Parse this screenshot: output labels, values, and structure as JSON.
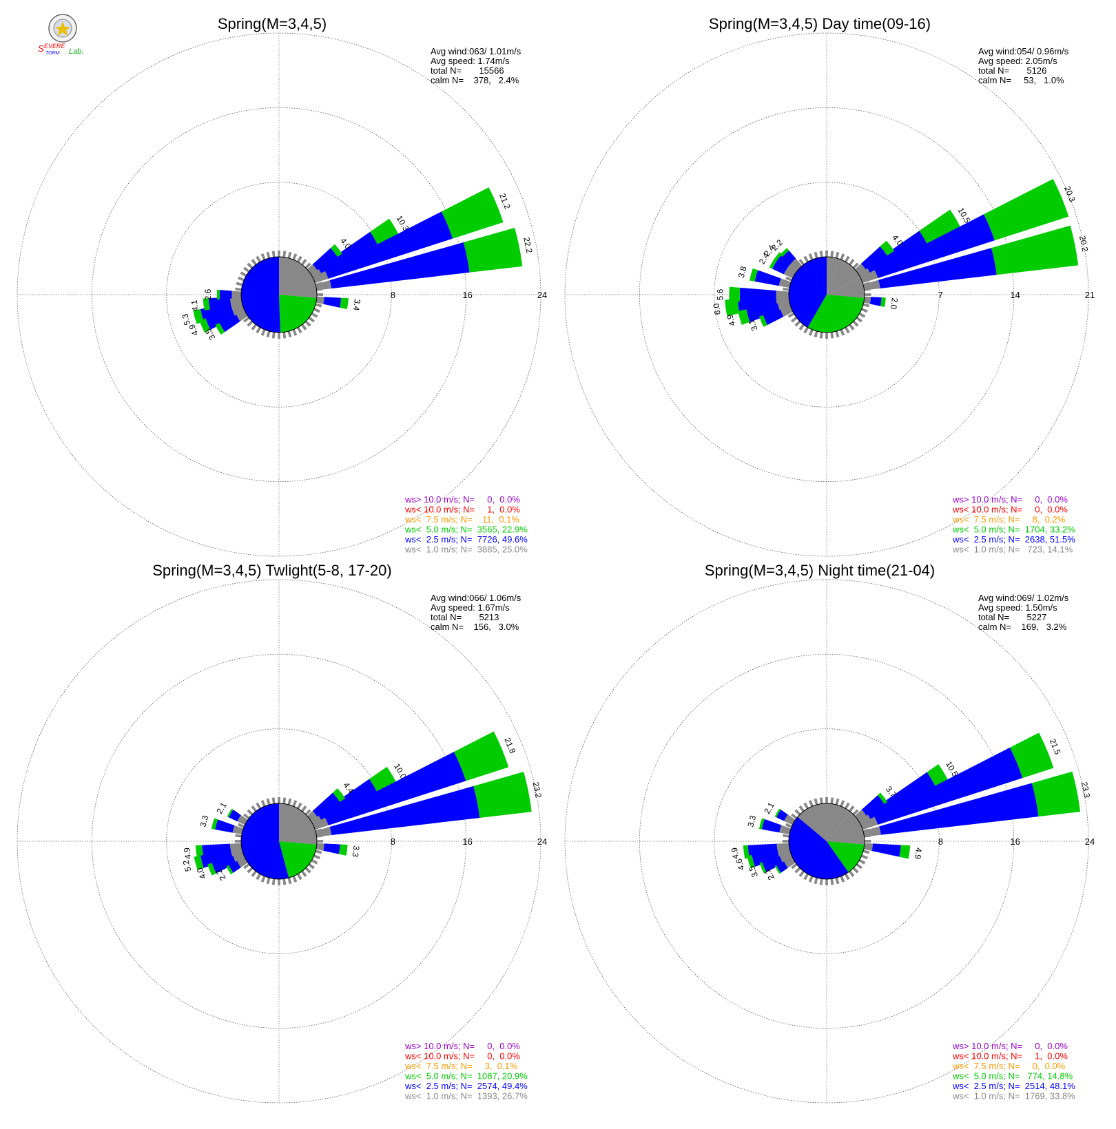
{
  "logo": {
    "text_top": "Severe",
    "text_bottom": "Storm",
    "text_lab": "Lab."
  },
  "colors": {
    "gt10": "#9a00cc",
    "lt10": "#ff0000",
    "lt7_5": "#ff9900",
    "lt5": "#00cc00",
    "lt2_5": "#0000ff",
    "lt1": "#888888"
  },
  "chart_data": [
    {
      "type": "windrose",
      "title": "Spring(M=3,4,5)",
      "stats": [
        "Avg wind:063/ 1.01m/s",
        "Avg speed: 1.74m/s",
        "total N=       15566",
        "calm N=    378,   2.4%"
      ],
      "rmax": 24,
      "ticks": [
        "8",
        "16",
        "24"
      ],
      "legend": [
        "ws> 10.0 m/s; N=     0,  0.0%",
        "ws< 10.0 m/s; N=     1,  0.0%",
        "ws<  7.5 m/s; N=    11,  0.1%",
        "ws<  5.0 m/s; N=  3565, 22.9%",
        "ws<  2.5 m/s; N=  7726, 49.6%",
        "ws<  1.0 m/s; N=  3885, 25.0%"
      ],
      "bars": [
        {
          "dir": 60,
          "value": 10.3,
          "label": "10.3",
          "lt1": 1.0,
          "lt2_5": 6.8,
          "lt5": 2.5
        },
        {
          "dir": 67.5,
          "value": 21.2,
          "label": "21.2",
          "lt1": 1.5,
          "lt2_5": 14.0,
          "lt5": 5.7
        },
        {
          "dir": 78.75,
          "value": 22.2,
          "label": "22.2",
          "lt1": 1.6,
          "lt2_5": 14.9,
          "lt5": 5.7
        },
        {
          "dir": 52.5,
          "value": 4.0,
          "label": "4.0",
          "lt1": 0.8,
          "lt2_5": 2.6,
          "lt5": 0.6
        },
        {
          "dir": 97.5,
          "value": 3.4,
          "label": "3.4",
          "lt1": 0.8,
          "lt2_5": 1.8,
          "lt5": 0.8
        },
        {
          "dir": 255,
          "value": 5.3,
          "label": "5.3",
          "lt1": 1.2,
          "lt2_5": 3.3,
          "lt5": 0.8
        },
        {
          "dir": 262.5,
          "value": 4.1,
          "label": "4.1",
          "lt1": 1.2,
          "lt2_5": 2.3,
          "lt5": 0.6
        },
        {
          "dir": 247.5,
          "value": 4.9,
          "label": "4.9",
          "lt1": 1.2,
          "lt2_5": 3.0,
          "lt5": 0.7
        },
        {
          "dir": 240,
          "value": 3.5,
          "label": "3.5",
          "lt1": 1.0,
          "lt2_5": 2.0,
          "lt5": 0.5
        },
        {
          "dir": 270,
          "value": 2.6,
          "label": "2.6",
          "lt1": 1.0,
          "lt2_5": 1.3,
          "lt5": 0.3
        }
      ],
      "pie": [
        {
          "start": 0,
          "end": 95,
          "cls": "lt1"
        },
        {
          "start": 95,
          "end": 178,
          "cls": "lt5"
        },
        {
          "start": 178,
          "end": 360,
          "cls": "lt2_5"
        }
      ]
    },
    {
      "type": "windrose",
      "title": "Spring(M=3,4,5) Day time(09-16)",
      "stats": [
        "Avg wind:054/ 0.96m/s",
        "Avg speed: 2.05m/s",
        "total N=       5126",
        "calm N=     53,   1.0%"
      ],
      "rmax": 21,
      "ticks": [
        "7",
        "14",
        "21"
      ],
      "legend": [
        "ws> 10.0 m/s; N=     0,  0.0%",
        "ws< 10.0 m/s; N=     0,  0.0%",
        "ws<  7.5 m/s; N=     8,  0.2%",
        "ws<  5.0 m/s; N=  1704, 33.2%",
        "ws<  2.5 m/s; N=  2638, 51.5%",
        "ws<  1.0 m/s; N=   723, 14.1%"
      ],
      "bars": [
        {
          "dir": 60,
          "value": 10.5,
          "label": "10.5",
          "lt1": 1.0,
          "lt2_5": 6.0,
          "lt5": 3.5
        },
        {
          "dir": 67.5,
          "value": 20.3,
          "label": "20.3",
          "lt1": 1.5,
          "lt2_5": 11.5,
          "lt5": 7.3
        },
        {
          "dir": 78.75,
          "value": 20.2,
          "label": "20.2",
          "lt1": 1.5,
          "lt2_5": 11.0,
          "lt5": 7.7
        },
        {
          "dir": 52.5,
          "value": 4.0,
          "label": "4.0",
          "lt1": 0.8,
          "lt2_5": 2.4,
          "lt5": 0.8
        },
        {
          "dir": 97.5,
          "value": 2.0,
          "label": "2.0",
          "lt1": 0.6,
          "lt2_5": 1.0,
          "lt5": 0.4
        },
        {
          "dir": 262.5,
          "value": 6.0,
          "label": "6.0",
          "lt1": 1.2,
          "lt2_5": 3.6,
          "lt5": 1.2
        },
        {
          "dir": 270,
          "value": 5.6,
          "label": "5.6",
          "lt1": 1.2,
          "lt2_5": 3.4,
          "lt5": 1.0
        },
        {
          "dir": 255,
          "value": 4.9,
          "label": "4.9",
          "lt1": 1.1,
          "lt2_5": 3.0,
          "lt5": 0.8
        },
        {
          "dir": 247.5,
          "value": 3.1,
          "label": "3.1",
          "lt1": 1.0,
          "lt2_5": 1.7,
          "lt5": 0.4
        },
        {
          "dir": 285,
          "value": 3.8,
          "label": "3.8",
          "lt1": 1.0,
          "lt2_5": 2.3,
          "lt5": 0.5
        },
        {
          "dir": 300,
          "value": 2.4,
          "label": "2.4",
          "lt1": 0.9,
          "lt2_5": 1.2,
          "lt5": 0.3
        },
        {
          "dir": 307.5,
          "value": 2.4,
          "label": "2.4",
          "lt1": 0.9,
          "lt2_5": 1.2,
          "lt5": 0.3
        },
        {
          "dir": 315,
          "value": 2.2,
          "label": "2.2",
          "lt1": 0.9,
          "lt2_5": 1.0,
          "lt5": 0.3
        }
      ],
      "pie": [
        {
          "start": 0,
          "end": 20,
          "cls": "lt1"
        },
        {
          "start": 20,
          "end": 62,
          "cls": "lt1"
        },
        {
          "start": 62,
          "end": 95,
          "cls": "lt1"
        },
        {
          "start": 95,
          "end": 210,
          "cls": "lt5"
        },
        {
          "start": 210,
          "end": 360,
          "cls": "lt2_5"
        }
      ]
    },
    {
      "type": "windrose",
      "title": "Spring(M=3,4,5) Twlight(5-8, 17-20)",
      "stats": [
        "Avg wind:066/ 1.06m/s",
        "Avg speed: 1.67m/s",
        "total N=       5213",
        "calm N=    156,   3.0%"
      ],
      "rmax": 24,
      "ticks": [
        "8",
        "16",
        "24"
      ],
      "legend": [
        "ws> 10.0 m/s; N=     0,  0.0%",
        "ws< 10.0 m/s; N=     0,  0.0%",
        "ws<  7.5 m/s; N=     3,  0.1%",
        "ws<  5.0 m/s; N=  1087, 20.9%",
        "ws<  2.5 m/s; N=  2574, 49.4%",
        "ws<  1.0 m/s; N=  1393, 26.7%"
      ],
      "bars": [
        {
          "dir": 60,
          "value": 10.0,
          "label": "10.0",
          "lt1": 1.0,
          "lt2_5": 6.7,
          "lt5": 2.3
        },
        {
          "dir": 67.5,
          "value": 21.8,
          "label": "21.8",
          "lt1": 1.5,
          "lt2_5": 15.5,
          "lt5": 4.8
        },
        {
          "dir": 78.75,
          "value": 23.2,
          "label": "23.2",
          "lt1": 1.6,
          "lt2_5": 16.0,
          "lt5": 5.6
        },
        {
          "dir": 52.5,
          "value": 4.4,
          "label": "4.4",
          "lt1": 0.8,
          "lt2_5": 2.9,
          "lt5": 0.7
        },
        {
          "dir": 97.5,
          "value": 3.3,
          "label": "3.3",
          "lt1": 0.8,
          "lt2_5": 1.7,
          "lt5": 0.8
        },
        {
          "dir": 262.5,
          "value": 4.9,
          "label": "4.9",
          "lt1": 1.2,
          "lt2_5": 3.0,
          "lt5": 0.7
        },
        {
          "dir": 255,
          "value": 5.2,
          "label": "5.2",
          "lt1": 1.2,
          "lt2_5": 3.3,
          "lt5": 0.7
        },
        {
          "dir": 247.5,
          "value": 4.0,
          "label": "4.0",
          "lt1": 1.1,
          "lt2_5": 2.4,
          "lt5": 0.5
        },
        {
          "dir": 240,
          "value": 2.2,
          "label": "2.2",
          "lt1": 0.9,
          "lt2_5": 1.0,
          "lt5": 0.3
        },
        {
          "dir": 285,
          "value": 3.3,
          "label": "3.3",
          "lt1": 1.0,
          "lt2_5": 1.9,
          "lt5": 0.4
        },
        {
          "dir": 300,
          "value": 2.1,
          "label": "2.1",
          "lt1": 0.9,
          "lt2_5": 1.0,
          "lt5": 0.2
        }
      ],
      "pie": [
        {
          "start": 0,
          "end": 95,
          "cls": "lt1"
        },
        {
          "start": 95,
          "end": 165,
          "cls": "lt5"
        },
        {
          "start": 165,
          "end": 360,
          "cls": "lt2_5"
        }
      ]
    },
    {
      "type": "windrose",
      "title": "Spring(M=3,4,5) Night time(21-04)",
      "stats": [
        "Avg wind:069/ 1.02m/s",
        "Avg speed: 1.50m/s",
        "total N=       5227",
        "calm N=    169,   3.2%"
      ],
      "rmax": 24,
      "ticks": [
        "8",
        "16",
        "24"
      ],
      "legend": [
        "ws> 10.0 m/s; N=     0,  0.0%",
        "ws< 10.0 m/s; N=     1,  0.0%",
        "ws<  7.5 m/s; N=     0,  0.0%",
        "ws<  5.0 m/s; N=   774, 14.8%",
        "ws<  2.5 m/s; N=  2514, 48.1%",
        "ws<  1.0 m/s; N=  1769, 33.8%"
      ],
      "bars": [
        {
          "dir": 60,
          "value": 10.5,
          "label": "10.5",
          "lt1": 1.2,
          "lt2_5": 7.8,
          "lt5": 1.5
        },
        {
          "dir": 67.5,
          "value": 21.5,
          "label": "21.5",
          "lt1": 1.7,
          "lt2_5": 16.3,
          "lt5": 3.5
        },
        {
          "dir": 78.75,
          "value": 23.3,
          "label": "23.3",
          "lt1": 1.8,
          "lt2_5": 17.0,
          "lt5": 4.5
        },
        {
          "dir": 52.5,
          "value": 3.7,
          "label": "3.7",
          "lt1": 1.0,
          "lt2_5": 2.3,
          "lt5": 0.4
        },
        {
          "dir": 97.5,
          "value": 4.9,
          "label": "4.9",
          "lt1": 0.9,
          "lt2_5": 3.0,
          "lt5": 1.0
        },
        {
          "dir": 262.5,
          "value": 4.9,
          "label": "4.9",
          "lt1": 1.3,
          "lt2_5": 3.1,
          "lt5": 0.5
        },
        {
          "dir": 255,
          "value": 4.6,
          "label": "4.6",
          "lt1": 1.3,
          "lt2_5": 2.8,
          "lt5": 0.5
        },
        {
          "dir": 247.5,
          "value": 3.5,
          "label": "3.5",
          "lt1": 1.2,
          "lt2_5": 2.0,
          "lt5": 0.3
        },
        {
          "dir": 240,
          "value": 2.1,
          "label": "2.1",
          "lt1": 1.0,
          "lt2_5": 0.9,
          "lt5": 0.2
        },
        {
          "dir": 285,
          "value": 3.3,
          "label": "3.3",
          "lt1": 1.1,
          "lt2_5": 1.9,
          "lt5": 0.3
        },
        {
          "dir": 300,
          "value": 2.1,
          "label": "2.1",
          "lt1": 1.0,
          "lt2_5": 0.9,
          "lt5": 0.2
        }
      ],
      "pie": [
        {
          "start": 0,
          "end": 40,
          "cls": "lt1"
        },
        {
          "start": 40,
          "end": 95,
          "cls": "lt1"
        },
        {
          "start": 95,
          "end": 145,
          "cls": "lt5"
        },
        {
          "start": 145,
          "end": 310,
          "cls": "lt2_5"
        },
        {
          "start": 310,
          "end": 360,
          "cls": "lt1"
        }
      ]
    }
  ]
}
